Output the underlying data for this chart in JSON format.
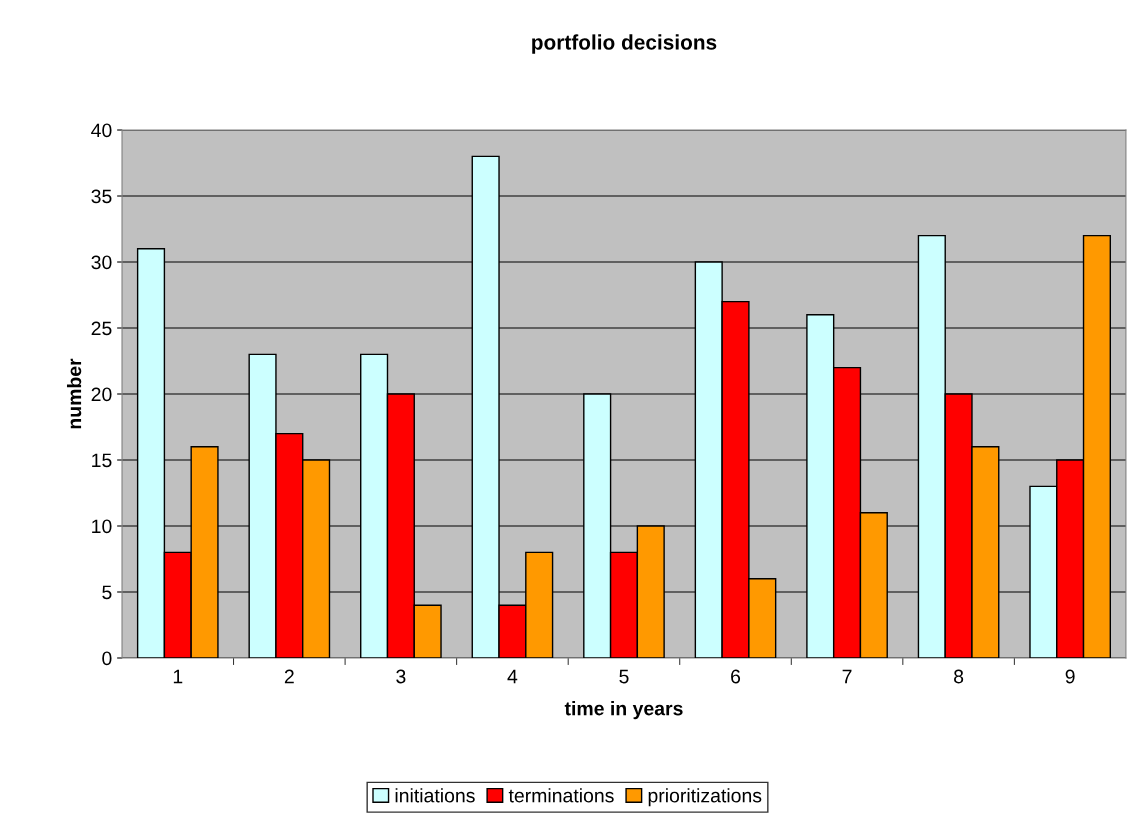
{
  "chart_data": {
    "type": "bar",
    "title": "portfolio decisions",
    "xlabel": "time in years",
    "ylabel": "number",
    "categories": [
      "1",
      "2",
      "3",
      "4",
      "5",
      "6",
      "7",
      "8",
      "9"
    ],
    "series": [
      {
        "name": "initiations",
        "color": "#ccffff",
        "values": [
          31,
          23,
          23,
          38,
          20,
          30,
          26,
          32,
          13
        ]
      },
      {
        "name": "terminations",
        "color": "#ff0000",
        "values": [
          8,
          17,
          20,
          4,
          8,
          27,
          22,
          20,
          15
        ]
      },
      {
        "name": "prioritizations",
        "color": "#ff9900",
        "values": [
          16,
          15,
          4,
          8,
          10,
          6,
          11,
          16,
          32
        ]
      }
    ],
    "ylim": [
      0,
      40
    ],
    "yticks": [
      0,
      5,
      10,
      15,
      20,
      25,
      30,
      35,
      40
    ],
    "grid": "y",
    "legend": "bottom"
  }
}
